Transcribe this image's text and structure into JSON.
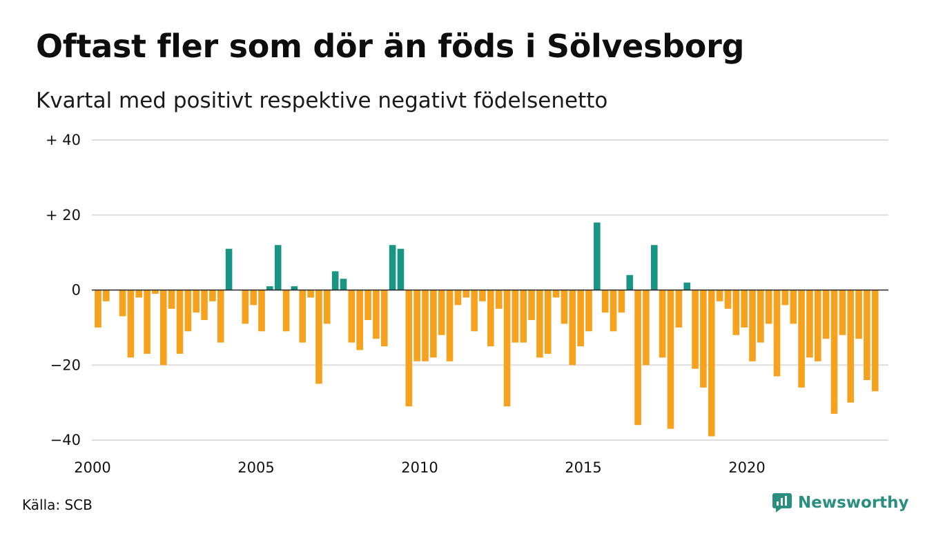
{
  "chart_data": {
    "type": "bar",
    "title": "Oftast fler som dör än föds i Sölvesborg",
    "subtitle": "Kvartal med positivt respektive negativt födelsenetto",
    "source": "Källa: SCB",
    "brand": "Newsworthy",
    "ylim": [
      -40,
      40
    ],
    "y_ticks": [
      {
        "value": 40,
        "label": "+ 40"
      },
      {
        "value": 20,
        "label": "+ 20"
      },
      {
        "value": 0,
        "label": "0"
      },
      {
        "value": -20,
        "label": "−20"
      },
      {
        "value": -40,
        "label": "−40"
      }
    ],
    "x_ticks": [
      "2000",
      "2005",
      "2010",
      "2015",
      "2020"
    ],
    "x_start_year": 2000,
    "grid": true,
    "colors": {
      "positive": "#1a9484",
      "negative": "#f6a21e",
      "grid": "#dddddd",
      "zero_line": "#222222",
      "brand": "#2a8f7e"
    },
    "values": [
      -10,
      -3,
      0,
      -7,
      -18,
      -2,
      -17,
      -1,
      -20,
      -5,
      -17,
      -11,
      -6,
      -8,
      -3,
      -14,
      11,
      0,
      -9,
      -4,
      -11,
      1,
      12,
      -11,
      1,
      -14,
      -2,
      -25,
      -9,
      5,
      3,
      -14,
      -16,
      -8,
      -13,
      -15,
      12,
      11,
      -31,
      -19,
      -19,
      -18,
      -12,
      -19,
      -4,
      -2,
      -11,
      -3,
      -15,
      -5,
      -31,
      -14,
      -14,
      -8,
      -18,
      -17,
      -2,
      -9,
      -20,
      -15,
      -11,
      18,
      -6,
      -11,
      -6,
      4,
      -36,
      -20,
      12,
      -18,
      -37,
      -10,
      2,
      -21,
      -26,
      -39,
      -3,
      -5,
      -12,
      -10,
      -19,
      -14,
      -9,
      -23,
      -4,
      -9,
      -26,
      -18,
      -19,
      -13,
      -33,
      -12,
      -30,
      -13,
      -24,
      -27
    ]
  }
}
